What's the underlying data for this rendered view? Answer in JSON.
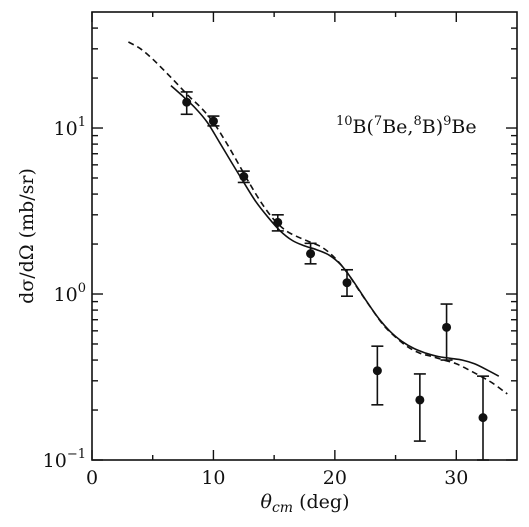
{
  "chart_data": {
    "type": "scatter",
    "annotation": {
      "parts": [
        {
          "text": "10",
          "sup": true
        },
        {
          "text": "B(",
          "sup": false
        },
        {
          "text": "7",
          "sup": true
        },
        {
          "text": "Be,",
          "sup": false
        },
        {
          "text": "8",
          "sup": true
        },
        {
          "text": "B)",
          "sup": false
        },
        {
          "text": "9",
          "sup": true
        },
        {
          "text": "Be",
          "sup": false
        }
      ]
    },
    "xlabel_main": "θ",
    "xlabel_sub": "cm",
    "xlabel_unit": " (deg)",
    "ylabel": "dσ/dΩ (mb/sr)",
    "xlim": [
      0,
      35
    ],
    "ylim": [
      0.1,
      50
    ],
    "yscale": "log",
    "x_ticks": [
      0,
      10,
      20,
      30
    ],
    "x_tick_labels": [
      "0",
      "10",
      "20",
      "30"
    ],
    "x_minor_ticks": [
      5,
      15,
      25
    ],
    "y_ticks": [
      {
        "value": 0.1,
        "base": "10",
        "exp": "−1"
      },
      {
        "value": 1,
        "base": "10",
        "exp": "0"
      },
      {
        "value": 10,
        "base": "10",
        "exp": "1"
      }
    ],
    "grid": false,
    "points": [
      {
        "x": 7.8,
        "y": 14.3,
        "err_low": 12.1,
        "err_high": 16.5
      },
      {
        "x": 10.0,
        "y": 11.0,
        "err_low": 10.3,
        "err_high": 11.8
      },
      {
        "x": 12.5,
        "y": 5.1,
        "err_low": 4.7,
        "err_high": 5.5
      },
      {
        "x": 15.3,
        "y": 2.7,
        "err_low": 2.4,
        "err_high": 3.0
      },
      {
        "x": 18.0,
        "y": 1.75,
        "err_low": 1.52,
        "err_high": 2.02
      },
      {
        "x": 21.0,
        "y": 1.17,
        "err_low": 0.97,
        "err_high": 1.4
      },
      {
        "x": 23.5,
        "y": 0.345,
        "err_low": 0.215,
        "err_high": 0.485
      },
      {
        "x": 27.0,
        "y": 0.23,
        "err_low": 0.13,
        "err_high": 0.33
      },
      {
        "x": 29.2,
        "y": 0.63,
        "err_low": 0.4,
        "err_high": 0.87
      },
      {
        "x": 32.2,
        "y": 0.18,
        "err_low": 0.1,
        "err_high": 0.32
      }
    ],
    "series": [
      {
        "style": "solid",
        "x": [
          6.5,
          7.5,
          8.5,
          9.5,
          10.5,
          11.5,
          12.5,
          13.5,
          14.5,
          15.5,
          16.5,
          17.5,
          18.5,
          19.5,
          20.5,
          21.5,
          22.5,
          23.5,
          24.5,
          25.5,
          26.5,
          27.5,
          28.5,
          29.5,
          30.5,
          31.5,
          32.5,
          33.5
        ],
        "y": [
          18.0,
          15.5,
          13.2,
          10.8,
          8.2,
          6.2,
          4.7,
          3.6,
          2.9,
          2.4,
          2.1,
          1.95,
          1.85,
          1.72,
          1.5,
          1.2,
          0.93,
          0.73,
          0.6,
          0.52,
          0.47,
          0.44,
          0.42,
          0.41,
          0.4,
          0.38,
          0.35,
          0.32
        ]
      },
      {
        "style": "dashed",
        "x": [
          3.0,
          4.0,
          5.0,
          6.0,
          7.0,
          8.0,
          9.0,
          10.0,
          11.0,
          12.0,
          13.0,
          14.0,
          15.0,
          16.0,
          17.0,
          18.0,
          19.0,
          20.0,
          21.0,
          22.0,
          23.0,
          24.0,
          25.0,
          26.0,
          27.0,
          28.0,
          29.0,
          30.0,
          31.0,
          32.0,
          33.0,
          34.2
        ],
        "y": [
          33.0,
          30.0,
          26.0,
          22.0,
          18.5,
          15.5,
          13.2,
          10.8,
          8.3,
          6.2,
          4.6,
          3.5,
          2.8,
          2.4,
          2.2,
          2.05,
          1.9,
          1.65,
          1.35,
          1.05,
          0.82,
          0.65,
          0.55,
          0.48,
          0.44,
          0.42,
          0.4,
          0.38,
          0.35,
          0.32,
          0.29,
          0.25
        ]
      }
    ]
  }
}
